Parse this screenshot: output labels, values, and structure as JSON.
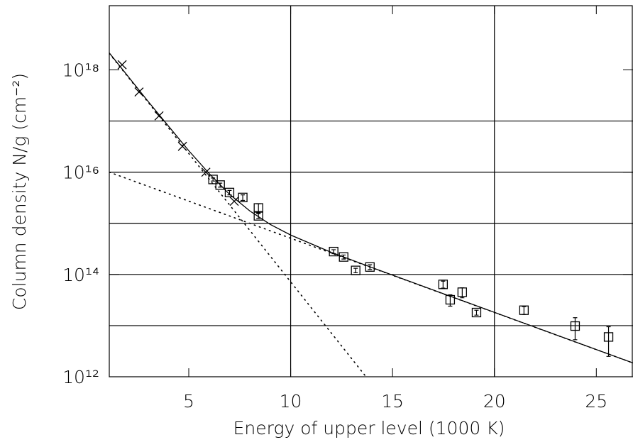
{
  "chart_data": {
    "type": "scatter",
    "xlabel": "Energy of upper level (1000 K)",
    "ylabel": "Column density N/g (cm⁻²)",
    "xlim": [
      1.1,
      26.8
    ],
    "ylim": [
      1000000000000.0,
      1.8e+19
    ],
    "log_y": true,
    "xticks": [
      5,
      10,
      15,
      20,
      25
    ],
    "yticks": [
      {
        "value": 1000000000000.0,
        "label": "10¹²"
      },
      {
        "value": 100000000000000.0,
        "label": "10¹⁴"
      },
      {
        "value": 1e+16,
        "label": "10¹⁶"
      },
      {
        "value": 1e+18,
        "label": "10¹⁸"
      }
    ],
    "xgrid": [
      10,
      20
    ],
    "ygrid": [
      10000000000000.0,
      100000000000000.0,
      1000000000000000.0,
      1e+16,
      1e+17
    ],
    "color": "#000000",
    "series": [
      {
        "marker": "x",
        "x": [
          1.73,
          2.56,
          3.54,
          4.69,
          5.84,
          7.23
        ],
        "values": [
          1.26e+18,
          3.7e+17,
          1.26e+17,
          3.2e+16,
          1e+16,
          2700000000000000.0
        ]
      },
      {
        "marker": "square",
        "x": [
          6.19,
          6.54,
          7.0,
          7.65,
          8.42,
          8.42,
          12.11,
          12.6,
          13.19,
          13.89,
          17.48,
          17.83,
          18.42,
          19.12,
          21.45,
          23.96,
          25.6
        ],
        "values": [
          7200000000000000.0,
          5600000000000000.0,
          4000000000000000.0,
          3200000000000000.0,
          2000000000000000.0,
          1400000000000000.0,
          280000000000000.0,
          220000000000000.0,
          120000000000000.0,
          140000000000000.0,
          64000000000000.0,
          32000000000000.0,
          45000000000000.0,
          18000000000000.0,
          20000000000000.0,
          9800000000000.0,
          6000000000000.0
        ],
        "errors": [
          500000000000000.0,
          500000000000000.0,
          400000000000000.0,
          400000000000000.0,
          400000000000000.0,
          150000000000000.0,
          25000000000000.0,
          20000000000000.0,
          12000000000000.0,
          15000000000000.0,
          10000000000000.0,
          8000000000000.0,
          10000000000000.0,
          2000000000000.0,
          3500000000000.0,
          4500000000000.0,
          3500000000000.0
        ]
      }
    ],
    "lines": [
      {
        "style": "solid",
        "x": [
          1.1,
          3,
          5,
          6,
          7,
          8,
          9,
          10,
          12,
          14,
          18,
          22,
          26.8
        ],
        "values": [
          2.15e+18,
          2.43e+17,
          2.63e+16,
          9400000000000000.0,
          3700000000000000.0,
          1740000000000000.0,
          950000000000000.0,
          590000000000000.0,
          270000000000000.0,
          136000000000000.0,
          35500000000000.0,
          9300000000000.0,
          1860000000000.0
        ]
      },
      {
        "style": "dotted",
        "x": [
          1.1,
          13.7
        ],
        "values": [
          2.1e+18,
          1000000000000.0
        ]
      },
      {
        "style": "dotted",
        "x": [
          1.1,
          26.8
        ],
        "values": [
          1e+16,
          1860000000000.0
        ]
      }
    ]
  }
}
